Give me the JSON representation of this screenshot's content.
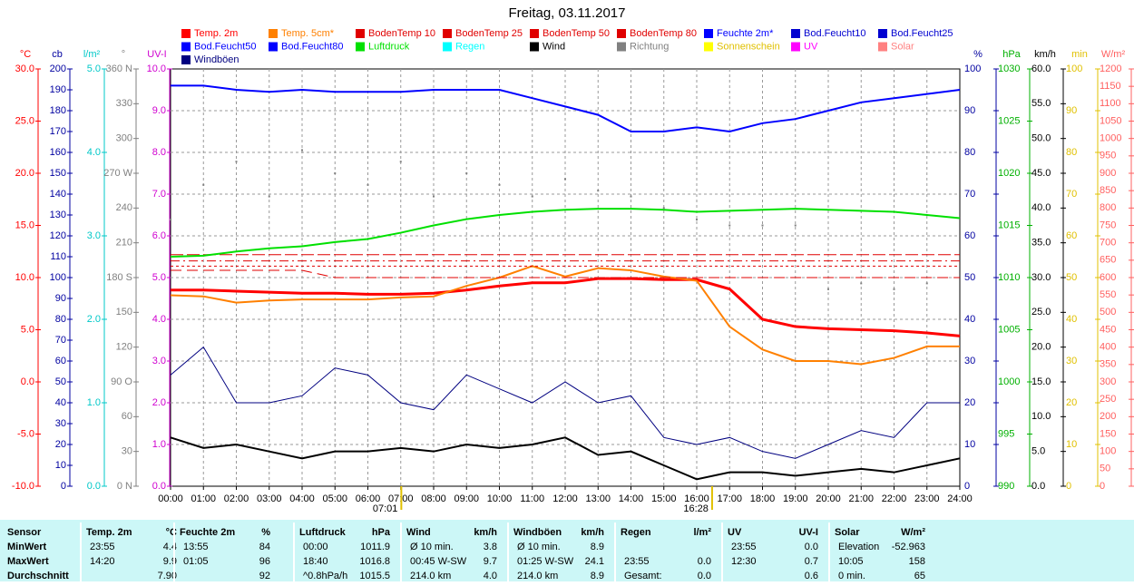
{
  "chart_data": {
    "type": "line",
    "title": "Freitag, 03.11.2017",
    "x": [
      0,
      1,
      2,
      3,
      4,
      5,
      6,
      7,
      8,
      9,
      10,
      11,
      12,
      13,
      14,
      15,
      16,
      17,
      18,
      19,
      20,
      21,
      22,
      23,
      24
    ],
    "xlim": [
      0,
      24
    ],
    "xticks": [
      {
        "value": 0,
        "label": "00:00"
      },
      {
        "value": 1,
        "label": "01:00"
      },
      {
        "value": 2,
        "label": "02:00"
      },
      {
        "value": 3,
        "label": "03:00"
      },
      {
        "value": 4,
        "label": "04:00"
      },
      {
        "value": 5,
        "label": "05:00"
      },
      {
        "value": 6,
        "label": "06:00"
      },
      {
        "value": 7,
        "label": "07:00"
      },
      {
        "value": 8,
        "label": "08:00"
      },
      {
        "value": 9,
        "label": "09:00"
      },
      {
        "value": 10,
        "label": "10:00"
      },
      {
        "value": 11,
        "label": "11:00"
      },
      {
        "value": 12,
        "label": "12:00"
      },
      {
        "value": 13,
        "label": "13:00"
      },
      {
        "value": 14,
        "label": "14:00"
      },
      {
        "value": 15,
        "label": "15:00"
      },
      {
        "value": 16,
        "label": "16:00"
      },
      {
        "value": 17,
        "label": "17:00"
      },
      {
        "value": 18,
        "label": "18:00"
      },
      {
        "value": 19,
        "label": "19:00"
      },
      {
        "value": 20,
        "label": "20:00"
      },
      {
        "value": 21,
        "label": "21:00"
      },
      {
        "value": 22,
        "label": "22:00"
      },
      {
        "value": 23,
        "label": "23:00"
      },
      {
        "value": 24,
        "label": "24:00"
      }
    ],
    "grid": true,
    "annotations": [
      {
        "x": 7.017,
        "label": "07:01"
      },
      {
        "x": 16.467,
        "label": "16:28"
      }
    ],
    "axes": [
      {
        "label": "°C",
        "side": "left",
        "color": "#ff0000",
        "lim": [
          -10,
          30
        ],
        "ticks": [
          {
            "value": 30,
            "label": "30.0"
          },
          {
            "value": 25,
            "label": "25.0"
          },
          {
            "value": 20,
            "label": "20.0"
          },
          {
            "value": 15,
            "label": "15.0"
          },
          {
            "value": 10,
            "label": "10.0"
          },
          {
            "value": 5,
            "label": "5.0"
          },
          {
            "value": 0,
            "label": "0.0"
          },
          {
            "value": -5,
            "label": "-5.0"
          },
          {
            "value": -10,
            "label": "-10.0"
          }
        ]
      },
      {
        "label": "cb",
        "side": "left",
        "color": "#0000a0",
        "lim": [
          0,
          200
        ],
        "ticks": [
          0,
          10,
          20,
          30,
          40,
          50,
          60,
          70,
          80,
          90,
          100,
          110,
          120,
          130,
          140,
          150,
          160,
          170,
          180,
          190,
          200
        ]
      },
      {
        "label": "l/m²",
        "side": "left",
        "color": "#00c8c8",
        "lim": [
          0,
          5
        ],
        "ticks": [
          {
            "value": 0,
            "label": "0.0"
          },
          {
            "value": 1,
            "label": "1.0"
          },
          {
            "value": 2,
            "label": "2.0"
          },
          {
            "value": 3,
            "label": "3.0"
          },
          {
            "value": 4,
            "label": "4.0"
          },
          {
            "value": 5,
            "label": "5.0"
          }
        ]
      },
      {
        "label": "°",
        "side": "left",
        "color": "#808080",
        "lim": [
          0,
          360
        ],
        "ticks": [
          {
            "value": 0,
            "label": "0 N"
          },
          30,
          60,
          {
            "value": 90,
            "label": "90 O"
          },
          120,
          150,
          {
            "value": 180,
            "label": "180 S"
          },
          210,
          240,
          {
            "value": 270,
            "label": "270 W"
          },
          300,
          330,
          {
            "value": 360,
            "label": "360 N"
          }
        ]
      },
      {
        "label": "UV-I",
        "side": "left",
        "color": "#d000d0",
        "lim": [
          0,
          10
        ],
        "ticks": [
          {
            "value": 0,
            "label": "0.0"
          },
          {
            "value": 1,
            "label": "1.0"
          },
          {
            "value": 2,
            "label": "2.0"
          },
          {
            "value": 3,
            "label": "3.0"
          },
          {
            "value": 4,
            "label": "4.0"
          },
          {
            "value": 5,
            "label": "5.0"
          },
          {
            "value": 6,
            "label": "6.0"
          },
          {
            "value": 7,
            "label": "7.0"
          },
          {
            "value": 8,
            "label": "8.0"
          },
          {
            "value": 9,
            "label": "9.0"
          },
          {
            "value": 10,
            "label": "10.0"
          }
        ]
      },
      {
        "label": "%",
        "side": "right",
        "color": "#0000a0",
        "lim": [
          0,
          100
        ],
        "ticks": [
          0,
          10,
          20,
          30,
          40,
          50,
          60,
          70,
          80,
          90,
          100
        ]
      },
      {
        "label": "hPa",
        "side": "right",
        "color": "#00b000",
        "lim": [
          990,
          1030
        ],
        "ticks": [
          990,
          995,
          1000,
          1005,
          1010,
          1015,
          1020,
          1025,
          1030
        ]
      },
      {
        "label": "km/h",
        "side": "right",
        "color": "#000000",
        "lim": [
          0,
          60
        ],
        "ticks": [
          {
            "value": 0,
            "label": "0.0"
          },
          {
            "value": 5,
            "label": "5.0"
          },
          {
            "value": 10,
            "label": "10.0"
          },
          {
            "value": 15,
            "label": "15.0"
          },
          {
            "value": 20,
            "label": "20.0"
          },
          {
            "value": 25,
            "label": "25.0"
          },
          {
            "value": 30,
            "label": "30.0"
          },
          {
            "value": 35,
            "label": "35.0"
          },
          {
            "value": 40,
            "label": "40.0"
          },
          {
            "value": 45,
            "label": "45.0"
          },
          {
            "value": 50,
            "label": "50.0"
          },
          {
            "value": 55,
            "label": "55.0"
          },
          {
            "value": 60,
            "label": "60.0"
          }
        ]
      },
      {
        "label": "min",
        "side": "right",
        "color": "#e0c000",
        "lim": [
          0,
          100
        ],
        "ticks": [
          0,
          10,
          20,
          30,
          40,
          50,
          60,
          70,
          80,
          90,
          100
        ]
      },
      {
        "label": "W/m²",
        "side": "right",
        "color": "#ff6060",
        "lim": [
          0,
          1200
        ],
        "ticks": [
          0,
          50,
          100,
          150,
          200,
          250,
          300,
          350,
          400,
          450,
          500,
          550,
          600,
          650,
          700,
          750,
          800,
          850,
          900,
          950,
          1000,
          1050,
          1100,
          1150,
          1200
        ]
      }
    ],
    "series": [
      {
        "name": "Temp. 2m",
        "color": "#ff0000",
        "axis": 0,
        "width": 3,
        "values": [
          8.8,
          8.8,
          8.7,
          8.6,
          8.5,
          8.5,
          8.4,
          8.4,
          8.5,
          8.8,
          9.2,
          9.5,
          9.5,
          9.9,
          9.9,
          9.8,
          9.8,
          8.9,
          6.0,
          5.3,
          5.1,
          5.0,
          4.9,
          4.7,
          4.4
        ]
      },
      {
        "name": "Temp. 5cm*",
        "color": "#ff8000",
        "axis": 0,
        "width": 2,
        "values": [
          8.3,
          8.2,
          7.6,
          7.8,
          7.9,
          7.9,
          7.9,
          8.1,
          8.2,
          9.2,
          10.0,
          11.1,
          10.1,
          10.9,
          10.7,
          10.1,
          9.7,
          5.3,
          3.1,
          2.0,
          2.0,
          1.7,
          2.3,
          3.4,
          3.4
        ]
      },
      {
        "name": "BodenTemp 10",
        "color": "#e00000",
        "axis": 0,
        "width": 1,
        "dash": "12 6",
        "values": [
          10.7,
          10.7,
          10.7,
          10.7,
          10.7,
          10.0,
          10.0,
          10.0,
          10.0,
          10.0,
          10.0,
          10.0,
          10.0,
          10.0,
          10.0,
          10.0,
          10.0,
          10.0,
          10.0,
          10.0,
          10.0,
          10.0,
          10.0,
          10.0,
          10.0
        ]
      },
      {
        "name": "BodenTemp 25",
        "color": "#e00000",
        "axis": 0,
        "width": 1,
        "dash": "3 3",
        "values": [
          11.1,
          11.1,
          11.1,
          11.1,
          11.1,
          11.1,
          11.1,
          11.1,
          11.1,
          11.1,
          11.1,
          11.1,
          11.1,
          11.1,
          11.1,
          11.1,
          11.1,
          11.1,
          11.1,
          11.1,
          11.1,
          11.1,
          11.1,
          11.1,
          11.1
        ]
      },
      {
        "name": "BodenTemp 50",
        "color": "#e00000",
        "axis": 0,
        "width": 1,
        "dash": "10 4 2 4",
        "values": [
          11.6,
          11.6,
          11.6,
          11.6,
          11.6,
          11.6,
          11.6,
          11.6,
          11.6,
          11.6,
          11.6,
          11.6,
          11.6,
          11.6,
          11.6,
          11.6,
          11.6,
          11.6,
          11.6,
          11.6,
          11.6,
          11.6,
          11.6,
          11.6,
          11.6
        ]
      },
      {
        "name": "BodenTemp 80",
        "color": "#e00000",
        "axis": 0,
        "width": 1,
        "dash": "14 4",
        "values": [
          12.2,
          12.2,
          12.2,
          12.2,
          12.2,
          12.2,
          12.2,
          12.2,
          12.2,
          12.2,
          12.2,
          12.2,
          12.2,
          12.2,
          12.2,
          12.2,
          12.2,
          12.2,
          12.2,
          12.2,
          12.2,
          12.2,
          12.2,
          12.2,
          12.2
        ]
      },
      {
        "name": "Feuchte 2m*",
        "color": "#0000ff",
        "axis": 5,
        "width": 2,
        "values": [
          96,
          96,
          95,
          94.5,
          95,
          94.5,
          94.5,
          94.5,
          95,
          95,
          95,
          93,
          91,
          89,
          85,
          85,
          86,
          85,
          87,
          88,
          90,
          92,
          93,
          94,
          95
        ]
      },
      {
        "name": "Bod.Feucht10",
        "color": "#0000d0"
      },
      {
        "name": "Bod.Feucht25",
        "color": "#0000d0"
      },
      {
        "name": "Bod.Feucht50",
        "color": "#0000ff"
      },
      {
        "name": "Bod.Feucht80",
        "color": "#0000ff"
      },
      {
        "name": "Luftdruck",
        "color": "#00e000",
        "axis": 6,
        "width": 2,
        "values": [
          1012.0,
          1012.1,
          1012.5,
          1012.8,
          1013.0,
          1013.4,
          1013.7,
          1014.3,
          1015.0,
          1015.6,
          1016.0,
          1016.3,
          1016.5,
          1016.6,
          1016.6,
          1016.5,
          1016.3,
          1016.4,
          1016.5,
          1016.6,
          1016.5,
          1016.4,
          1016.3,
          1016.0,
          1015.7
        ]
      },
      {
        "name": "Regen",
        "color": "#00ffff"
      },
      {
        "name": "Wind",
        "color": "#000000",
        "axis": 7,
        "width": 2,
        "values": [
          7,
          5.5,
          6,
          5,
          4,
          5,
          5,
          5.5,
          5,
          6,
          5.5,
          6,
          7,
          4.5,
          5,
          3,
          1,
          2,
          2,
          1.5,
          2,
          2.5,
          2,
          3,
          4
        ]
      },
      {
        "name": "Richtung",
        "color": "#808080",
        "axis": 3,
        "dots": true,
        "values": [
          230,
          260,
          280,
          250,
          290,
          270,
          260,
          280,
          250,
          270,
          260,
          250,
          265,
          255,
          250,
          240,
          230,
          225,
          225,
          225,
          170,
          175,
          170,
          175,
          165
        ]
      },
      {
        "name": "Sonnenschein",
        "color": "#ffff00"
      },
      {
        "name": "UV",
        "color": "#ff00ff"
      },
      {
        "name": "Solar",
        "color": "#ff8080"
      },
      {
        "name": "Windböen",
        "color": "#000080",
        "axis": 7,
        "width": 1,
        "values": [
          16,
          20,
          12,
          12,
          13,
          17,
          16,
          12,
          11,
          16,
          14,
          12,
          15,
          12,
          13,
          7,
          6,
          7,
          5,
          4,
          6,
          8,
          7,
          12,
          12
        ]
      }
    ]
  },
  "table": {
    "header": "Sensor",
    "row_labels": [
      "MinWert",
      "MaxWert",
      "Durchschnitt"
    ],
    "groups": [
      {
        "header": [
          "Temp. 2m",
          "°C"
        ],
        "rows": [
          [
            "23:55",
            "4.4"
          ],
          [
            "14:20",
            "9.9"
          ],
          [
            null,
            "7.90"
          ]
        ]
      },
      {
        "header": [
          "Feuchte 2m",
          "%"
        ],
        "rows": [
          [
            "13:55",
            "84"
          ],
          [
            "01:05",
            "96"
          ],
          [
            null,
            "92"
          ]
        ]
      },
      {
        "header": [
          "Luftdruck",
          "hPa"
        ],
        "rows": [
          [
            "00:00",
            "1011.9"
          ],
          [
            "18:40",
            "1016.8"
          ],
          [
            "^0.8hPa/h",
            "1015.5"
          ]
        ]
      },
      {
        "header": [
          "Wind",
          "km/h"
        ],
        "rows": [
          [
            "Ø 10 min.",
            "3.8"
          ],
          [
            "00:45  W-SW",
            "9.7"
          ],
          [
            "214.0 km",
            "4.0"
          ]
        ]
      },
      {
        "header": [
          "Windböen",
          "km/h"
        ],
        "rows": [
          [
            "Ø 10 min.",
            "8.9"
          ],
          [
            "01:25  W-SW",
            "24.1"
          ],
          [
            "214.0 km",
            "8.9"
          ]
        ]
      },
      {
        "header": [
          "Regen",
          "l/m²"
        ],
        "rows": [
          [
            null,
            null
          ],
          [
            "23:55",
            "0.0"
          ],
          [
            "Gesamt:",
            "0.0"
          ]
        ]
      },
      {
        "header": [
          "UV",
          "UV-I"
        ],
        "rows": [
          [
            "23:55",
            "0.0"
          ],
          [
            "12:30",
            "0.7"
          ],
          [
            null,
            "0.6"
          ]
        ]
      },
      {
        "header": [
          "Solar",
          "W/m²"
        ],
        "rows": [
          [
            "Elevation",
            "-52.963"
          ],
          [
            "10:05",
            "158"
          ],
          [
            "0 min.",
            "65"
          ]
        ]
      }
    ]
  }
}
